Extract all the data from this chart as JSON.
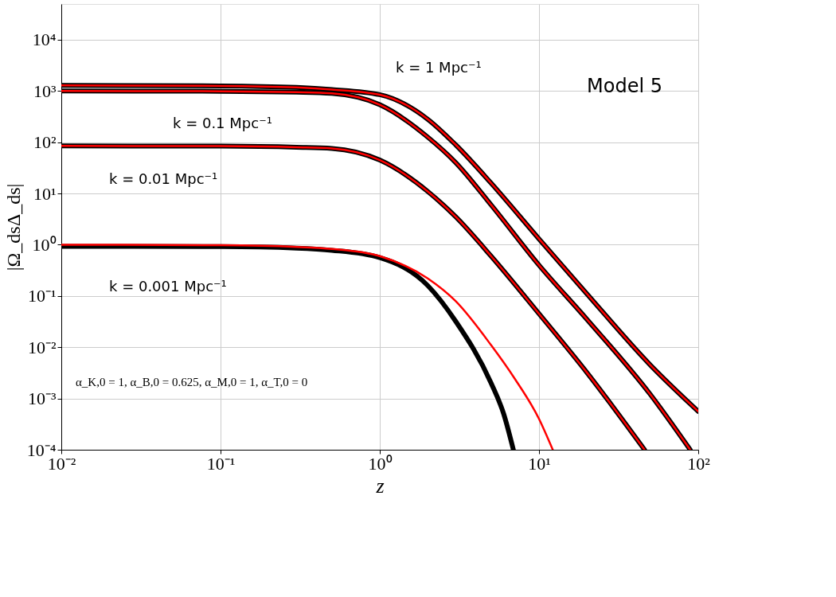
{
  "chart_data": {
    "type": "line",
    "xlabel": "z",
    "ylabel": "|Ω_dsΔ_ds|",
    "log": "xy",
    "grid": true,
    "xlim": [
      0.01,
      100
    ],
    "ylim": [
      0.0001,
      50000
    ],
    "xticks": [
      {
        "value": 0.01,
        "label": "10⁻²"
      },
      {
        "value": 0.1,
        "label": "10⁻¹"
      },
      {
        "value": 1,
        "label": "10⁰"
      },
      {
        "value": 10,
        "label": "10¹"
      },
      {
        "value": 100,
        "label": "10²"
      }
    ],
    "yticks": [
      {
        "value": 0.0001,
        "label": "10⁻⁴"
      },
      {
        "value": 0.001,
        "label": "10⁻³"
      },
      {
        "value": 0.01,
        "label": "10⁻²"
      },
      {
        "value": 0.1,
        "label": "10⁻¹"
      },
      {
        "value": 1,
        "label": "10⁰"
      },
      {
        "value": 10,
        "label": "10¹"
      },
      {
        "value": 100,
        "label": "10²"
      },
      {
        "value": 1000,
        "label": "10³"
      },
      {
        "value": 10000,
        "label": "10⁴"
      }
    ],
    "series": [
      {
        "color": "#000000",
        "x": [
          0.01,
          0.1,
          0.3,
          0.5,
          1,
          2,
          3,
          5,
          10,
          20,
          50,
          100
        ],
        "values": [
          1290,
          1260,
          1175,
          1070,
          850,
          282,
          89,
          16,
          1.3,
          0.11,
          0.0045,
          0.00056
        ]
      },
      {
        "color": "#ff0000",
        "x": [
          0.01,
          0.1,
          0.3,
          0.5,
          1,
          2,
          3,
          5,
          10,
          20,
          50,
          100
        ],
        "values": [
          1290,
          1260,
          1175,
          1070,
          850,
          282,
          89,
          16,
          1.3,
          0.11,
          0.0045,
          0.00056
        ]
      },
      {
        "color": "#000000",
        "x": [
          0.01,
          0.1,
          0.3,
          0.5,
          1,
          2,
          3,
          5,
          10,
          20,
          50,
          89
        ],
        "values": [
          1000,
          990,
          950,
          900,
          540,
          126,
          40,
          6,
          0.4,
          0.035,
          0.0012,
          0.0001
        ]
      },
      {
        "color": "#ff0000",
        "x": [
          0.01,
          0.1,
          0.3,
          0.5,
          1,
          2,
          3,
          5,
          10,
          20,
          50,
          89
        ],
        "values": [
          1000,
          990,
          950,
          900,
          540,
          126,
          40,
          6,
          0.4,
          0.035,
          0.0012,
          0.0001
        ]
      },
      {
        "color": "#000000",
        "x": [
          0.01,
          0.1,
          0.3,
          0.5,
          1,
          2,
          3,
          5,
          10,
          20,
          46
        ],
        "values": [
          85,
          84,
          80,
          76,
          45,
          11,
          3.5,
          0.6,
          0.045,
          0.0032,
          0.0001
        ]
      },
      {
        "color": "#ff0000",
        "x": [
          0.01,
          0.1,
          0.3,
          0.5,
          1,
          2,
          3,
          5,
          10,
          20,
          46
        ],
        "values": [
          85,
          84,
          80,
          76,
          45,
          11,
          3.5,
          0.6,
          0.045,
          0.0032,
          0.0001
        ]
      },
      {
        "color": "#000000",
        "x": [
          0.01,
          0.1,
          0.3,
          0.5,
          1,
          2,
          3,
          5,
          6,
          6.9
        ],
        "values": [
          0.93,
          0.92,
          0.86,
          0.78,
          0.56,
          0.16,
          0.032,
          0.002,
          0.0005,
          0.0001
        ]
      },
      {
        "color": "#ff0000",
        "x": [
          0.01,
          0.1,
          0.3,
          0.5,
          1,
          2,
          3,
          5,
          7,
          10,
          12.2
        ],
        "values": [
          1.0,
          0.98,
          0.91,
          0.83,
          0.6,
          0.22,
          0.079,
          0.011,
          0.0025,
          0.0004,
          0.0001
        ]
      }
    ],
    "annotations": [
      "k = 1 Mpc⁻¹",
      "k = 0.1 Mpc⁻¹",
      "k = 0.01 Mpc⁻¹",
      "k = 0.001 Mpc⁻¹",
      "Model 5",
      "α_K,0 = 1, α_B,0 = 0.625, α_M,0 = 1, α_T,0 = 0"
    ]
  }
}
